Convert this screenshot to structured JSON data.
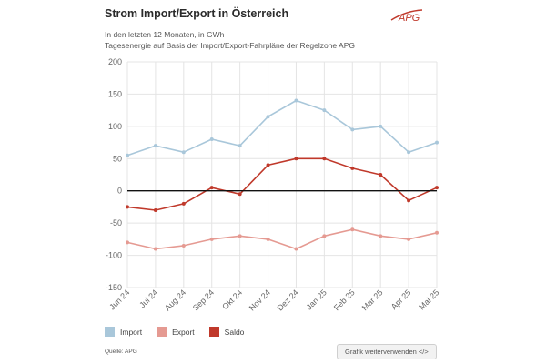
{
  "header": {
    "title": "Strom Import/Export in Österreich",
    "subtitle_1": "In den letzten 12 Monaten, in GWh",
    "subtitle_2": "Tagesenergie auf Basis der Import/Export-Fahrpläne der Regelzone APG",
    "logo_text": "APG"
  },
  "legend": {
    "import_label": "Import",
    "export_label": "Export",
    "saldo_label": "Saldo"
  },
  "footer": {
    "source": "Quelle: APG",
    "share_button": "Grafik weiterverwenden </>"
  },
  "colors": {
    "import": "#a9c7da",
    "export": "#e59a92",
    "saldo": "#c0392b",
    "zero_line": "#111111",
    "grid": "#e4e4e4",
    "logo": "#c0392b"
  },
  "chart_data": {
    "type": "line",
    "title": "Strom Import/Export in Österreich",
    "ylabel": "",
    "xlabel": "",
    "ylim": [
      -150,
      200
    ],
    "yticks": [
      -150,
      -100,
      -50,
      0,
      50,
      100,
      150,
      200
    ],
    "grid": true,
    "legend_position": "bottom-left",
    "x_tick_labels": [
      "Jun 24",
      "Jul 24",
      "Aug 24",
      "Sep 24",
      "Okt 24",
      "Nov 24",
      "Dez 24",
      "Jan 25",
      "Feb 25",
      "Mar 25",
      "Apr 25",
      "Mai 25"
    ],
    "x": [
      "Jun 24",
      "Jul 24",
      "Aug 24",
      "Sep 24",
      "Okt 24",
      "Nov 24",
      "Dez 24",
      "Jan 25",
      "Feb 25",
      "Mar 25",
      "Apr 25",
      "Mai 25"
    ],
    "series": [
      {
        "name": "Import",
        "values": [
          55,
          70,
          60,
          80,
          70,
          115,
          140,
          125,
          95,
          100,
          60,
          75
        ]
      },
      {
        "name": "Export",
        "values": [
          -80,
          -90,
          -85,
          -75,
          -70,
          -75,
          -90,
          -70,
          -60,
          -70,
          -75,
          -65
        ]
      },
      {
        "name": "Saldo",
        "values": [
          -25,
          -30,
          -20,
          5,
          -5,
          40,
          50,
          50,
          35,
          25,
          -15,
          5
        ]
      }
    ]
  }
}
